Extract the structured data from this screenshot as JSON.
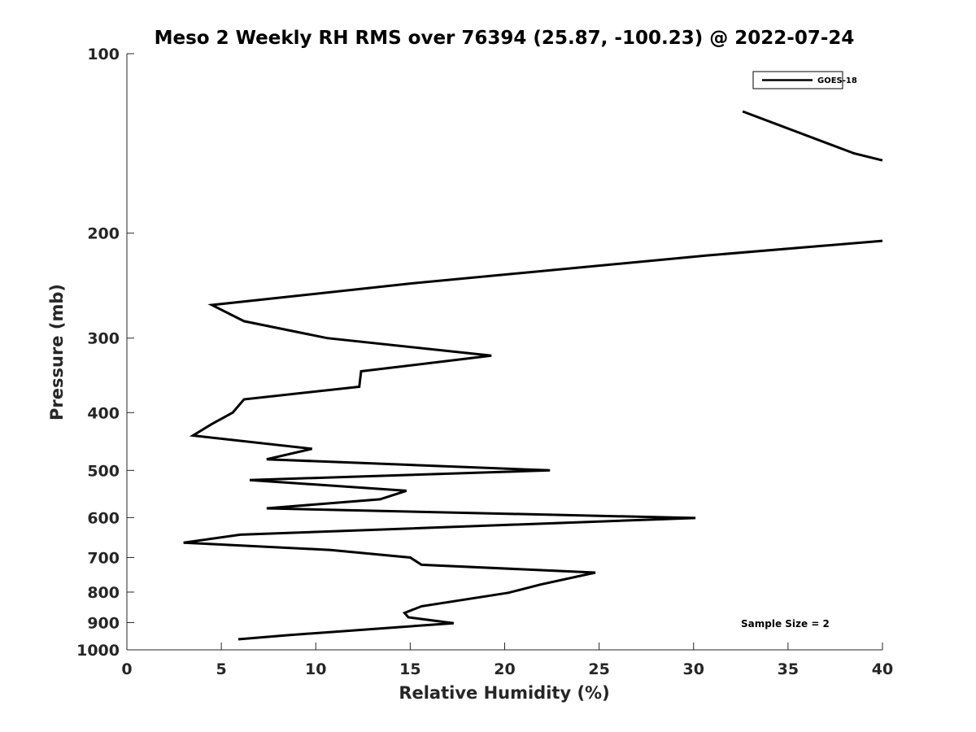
{
  "chart_data": {
    "type": "line",
    "title": "Meso 2 Weekly RH RMS over 76394 (25.87, -100.23) @ 2022-07-24",
    "xlabel": "Relative Humidity (%)",
    "ylabel": "Pressure (mb)",
    "xlim": [
      0,
      40
    ],
    "ylim": [
      100,
      1000
    ],
    "y_scale": "log",
    "y_reversed": true,
    "xticks": [
      0,
      5,
      10,
      15,
      20,
      25,
      30,
      35,
      40
    ],
    "xtick_labels": [
      "0",
      "5",
      "10",
      "15",
      "20",
      "25",
      "30",
      "35",
      "40"
    ],
    "yticks": [
      100,
      200,
      300,
      400,
      500,
      600,
      700,
      800,
      900,
      1000
    ],
    "ytick_labels": [
      "100",
      "200",
      "300",
      "400",
      "500",
      "600",
      "700",
      "800",
      "900",
      "1000"
    ],
    "grid": false,
    "legend_position": "top-right",
    "annotation": "Sample Size = 2",
    "series": [
      {
        "name": "GOES-18",
        "color": "#000000",
        "segments": [
          [
            {
              "rh": 32.6,
              "p": 125
            },
            {
              "rh": 38.5,
              "p": 147
            },
            {
              "rh": 40.0,
              "p": 151
            }
          ],
          [
            {
              "rh": 40.0,
              "p": 206
            },
            {
              "rh": 30.7,
              "p": 218
            },
            {
              "rh": 15.0,
              "p": 243
            },
            {
              "rh": 4.5,
              "p": 264
            },
            {
              "rh": 6.2,
              "p": 281
            },
            {
              "rh": 10.6,
              "p": 300
            },
            {
              "rh": 19.3,
              "p": 321
            },
            {
              "rh": 12.4,
              "p": 341
            },
            {
              "rh": 12.3,
              "p": 362
            },
            {
              "rh": 6.2,
              "p": 380
            },
            {
              "rh": 5.6,
              "p": 400
            },
            {
              "rh": 4.5,
              "p": 418
            },
            {
              "rh": 3.5,
              "p": 437
            },
            {
              "rh": 9.8,
              "p": 460
            },
            {
              "rh": 7.4,
              "p": 479
            },
            {
              "rh": 22.4,
              "p": 500
            },
            {
              "rh": 6.5,
              "p": 519
            },
            {
              "rh": 14.8,
              "p": 541
            },
            {
              "rh": 13.4,
              "p": 559
            },
            {
              "rh": 7.4,
              "p": 579
            },
            {
              "rh": 30.1,
              "p": 601
            },
            {
              "rh": 6.0,
              "p": 641
            },
            {
              "rh": 3.0,
              "p": 661
            },
            {
              "rh": 10.8,
              "p": 680
            },
            {
              "rh": 15.0,
              "p": 700
            },
            {
              "rh": 15.6,
              "p": 720
            },
            {
              "rh": 24.8,
              "p": 742
            },
            {
              "rh": 21.9,
              "p": 777
            },
            {
              "rh": 20.2,
              "p": 802
            },
            {
              "rh": 15.6,
              "p": 845
            },
            {
              "rh": 14.7,
              "p": 867
            },
            {
              "rh": 14.9,
              "p": 882
            },
            {
              "rh": 17.3,
              "p": 902
            },
            {
              "rh": 8.5,
              "p": 945
            },
            {
              "rh": 5.9,
              "p": 960
            }
          ]
        ]
      }
    ]
  }
}
